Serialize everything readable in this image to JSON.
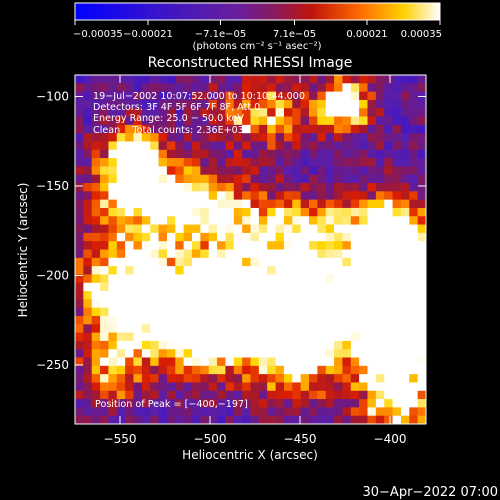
{
  "chart_data": {
    "type": "heatmap",
    "title": "Reconstructed RHESSI Image",
    "xlabel": "Heliocentric X (arcsec)",
    "ylabel": "Heliocentric Y (arcsec)",
    "xlim": [
      -575,
      -380
    ],
    "ylim": [
      -283,
      -88
    ],
    "x_ticks": [
      -550,
      -500,
      -450,
      -400
    ],
    "y_ticks": [
      -100,
      -150,
      -200,
      -250
    ],
    "x_tick_labels": [
      "−550",
      "−500",
      "−450",
      "−400"
    ],
    "y_tick_labels": [
      "−100",
      "−150",
      "−200",
      "−250"
    ],
    "colorbar": {
      "min": -0.00035,
      "max": 0.00035,
      "ticks": [
        -0.00035,
        -0.00021,
        -7.1e-05,
        7.1e-05,
        0.00021,
        0.00035
      ],
      "tick_labels": [
        "−0.00035",
        "−0.00021",
        "−7.1e−05",
        "7.1e−05",
        "0.00021",
        "0.00035"
      ],
      "unit_label": "(photons cm⁻² s⁻¹ asec⁻²)",
      "colormap": [
        "#0000ff",
        "#3c14c8",
        "#5a1eb4",
        "#7a1e8c",
        "#a01e32",
        "#dc1e00",
        "#ff7a00",
        "#ffd200",
        "#ffffff"
      ]
    },
    "annotations": [
      "19−Jul−2002 10:07:52.000 to 10:10:44.000",
      "Detectors: 3F 4F 5F 6F 7F 8F, Att 0",
      "Energy Range: 25.0 − 50.0 keV",
      "Clean    Total counts: 2.36E+03"
    ],
    "peak_label": "Position of Peak = [−400,−197]",
    "peak": [
      -400,
      -197
    ],
    "sources": [
      {
        "x": -542,
        "y": -136,
        "amp": 1.0,
        "sx": 12,
        "sy": 12
      },
      {
        "x": -520,
        "y": -160,
        "amp": 0.75,
        "sx": 30,
        "sy": 14
      },
      {
        "x": -470,
        "y": -110,
        "amp": 0.55,
        "sx": 20,
        "sy": 12
      },
      {
        "x": -425,
        "y": -105,
        "amp": 0.85,
        "sx": 10,
        "sy": 10
      },
      {
        "x": -470,
        "y": -205,
        "amp": 0.95,
        "sx": 55,
        "sy": 18
      },
      {
        "x": -503,
        "y": -235,
        "amp": 0.9,
        "sx": 18,
        "sy": 14
      },
      {
        "x": -450,
        "y": -240,
        "amp": 0.85,
        "sx": 20,
        "sy": 18
      },
      {
        "x": -400,
        "y": -197,
        "amp": 1.15,
        "sx": 12,
        "sy": 22
      },
      {
        "x": -395,
        "y": -240,
        "amp": 1.0,
        "sx": 14,
        "sy": 40
      },
      {
        "x": -548,
        "y": -215,
        "amp": 0.6,
        "sx": 16,
        "sy": 22
      },
      {
        "x": -555,
        "y": -255,
        "amp": 0.45,
        "sx": 12,
        "sy": 12
      },
      {
        "x": -445,
        "y": -170,
        "amp": 0.45,
        "sx": 30,
        "sy": 10
      }
    ],
    "background_level": 0.38,
    "grid": false
  },
  "footer": {
    "timestamp": "30−Apr−2022 07:00"
  }
}
